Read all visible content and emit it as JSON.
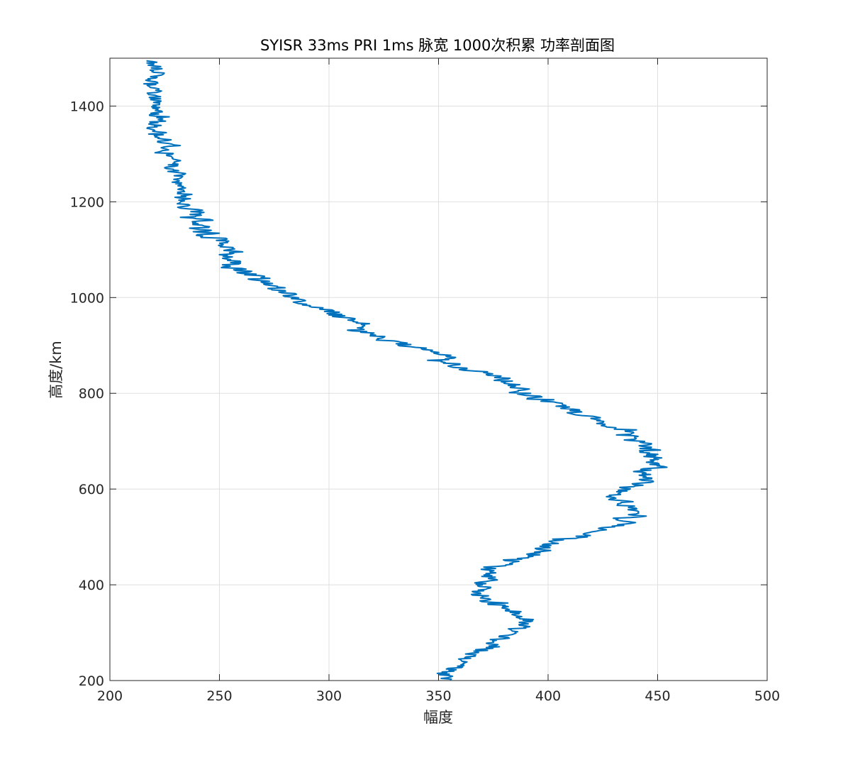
{
  "chart_data": {
    "type": "line",
    "title": "SYISR 33ms PRI 1ms 脉宽 1000次积累 功率剖面图",
    "xlabel": "幅度",
    "ylabel": "高度/km",
    "xlim": [
      200,
      500
    ],
    "ylim": [
      200,
      1500
    ],
    "xticks": [
      200,
      250,
      300,
      350,
      400,
      450,
      500
    ],
    "yticks": [
      200,
      400,
      600,
      800,
      1000,
      1200,
      1400
    ],
    "grid": true,
    "legend": "none",
    "series": [
      {
        "color": "#0072BD",
        "noise_amplitude": 7,
        "points": [
          [
            354,
            200
          ],
          [
            352,
            215
          ],
          [
            358,
            230
          ],
          [
            362,
            245
          ],
          [
            368,
            260
          ],
          [
            376,
            275
          ],
          [
            380,
            290
          ],
          [
            385,
            305
          ],
          [
            392,
            320
          ],
          [
            388,
            335
          ],
          [
            380,
            350
          ],
          [
            372,
            365
          ],
          [
            368,
            380
          ],
          [
            370,
            395
          ],
          [
            374,
            410
          ],
          [
            372,
            425
          ],
          [
            376,
            440
          ],
          [
            386,
            455
          ],
          [
            398,
            470
          ],
          [
            400,
            480
          ],
          [
            405,
            490
          ],
          [
            415,
            500
          ],
          [
            420,
            510
          ],
          [
            428,
            520
          ],
          [
            434,
            530
          ],
          [
            440,
            545
          ],
          [
            436,
            560
          ],
          [
            432,
            575
          ],
          [
            430,
            590
          ],
          [
            438,
            605
          ],
          [
            445,
            620
          ],
          [
            443,
            635
          ],
          [
            446,
            650
          ],
          [
            447,
            665
          ],
          [
            445,
            680
          ],
          [
            442,
            695
          ],
          [
            436,
            710
          ],
          [
            432,
            725
          ],
          [
            426,
            740
          ],
          [
            418,
            755
          ],
          [
            409,
            770
          ],
          [
            400,
            785
          ],
          [
            390,
            800
          ],
          [
            384,
            815
          ],
          [
            382,
            825
          ],
          [
            372,
            840
          ],
          [
            360,
            855
          ],
          [
            355,
            870
          ],
          [
            346,
            885
          ],
          [
            336,
            900
          ],
          [
            326,
            915
          ],
          [
            314,
            930
          ],
          [
            315,
            945
          ],
          [
            306,
            960
          ],
          [
            298,
            975
          ],
          [
            290,
            990
          ],
          [
            283,
            1000
          ],
          [
            276,
            1015
          ],
          [
            270,
            1030
          ],
          [
            265,
            1045
          ],
          [
            259,
            1060
          ],
          [
            256,
            1075
          ],
          [
            254,
            1090
          ],
          [
            252,
            1105
          ],
          [
            250,
            1120
          ],
          [
            246,
            1135
          ],
          [
            243,
            1150
          ],
          [
            240,
            1165
          ],
          [
            237,
            1180
          ],
          [
            234,
            1195
          ],
          [
            233,
            1210
          ],
          [
            230,
            1225
          ],
          [
            230,
            1240
          ],
          [
            230,
            1255
          ],
          [
            229,
            1270
          ],
          [
            228,
            1285
          ],
          [
            227,
            1300
          ],
          [
            225,
            1315
          ],
          [
            224,
            1330
          ],
          [
            222,
            1345
          ],
          [
            221,
            1360
          ],
          [
            221,
            1375
          ],
          [
            220,
            1390
          ],
          [
            221,
            1405
          ],
          [
            221,
            1420
          ],
          [
            220,
            1435
          ],
          [
            221,
            1450
          ],
          [
            220,
            1465
          ],
          [
            220,
            1480
          ],
          [
            219,
            1495
          ]
        ]
      }
    ]
  }
}
